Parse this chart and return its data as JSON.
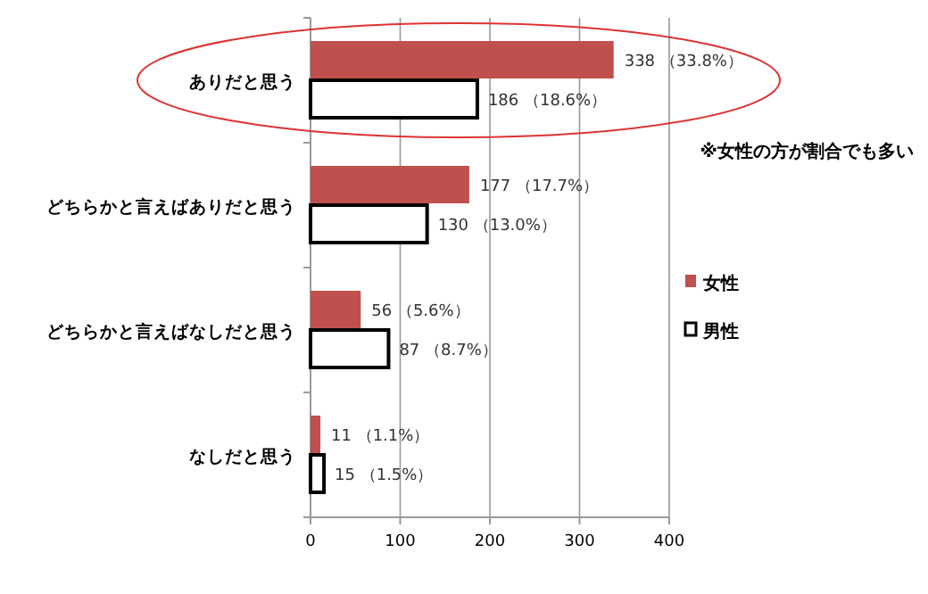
{
  "chart_data": {
    "type": "bar",
    "orientation": "horizontal",
    "categories": [
      "ありだと思う",
      "どちらかと言えばありだと思う",
      "どちらかと言えばなしだと思う",
      "なしだと思う"
    ],
    "series": [
      {
        "name": "女性",
        "color": "#c0504d",
        "values": [
          338,
          177,
          56,
          11
        ],
        "value_labels": [
          "338 （33.8%）",
          "177 （17.7%）",
          "56 （5.6%）",
          "11 （1.1%）"
        ]
      },
      {
        "name": "男性",
        "color": "#ffffff",
        "values": [
          186,
          130,
          87,
          15
        ],
        "value_labels": [
          "186 （18.6%）",
          "130 （13.0%）",
          "87 （8.7%）",
          "15 （1.5%）"
        ]
      }
    ],
    "xlim": [
      0,
      400
    ],
    "xticks": [
      0,
      100,
      200,
      300,
      400
    ],
    "grid": "x",
    "legend": "right",
    "annotations": [
      "※女性の方が割合でも多い"
    ]
  }
}
